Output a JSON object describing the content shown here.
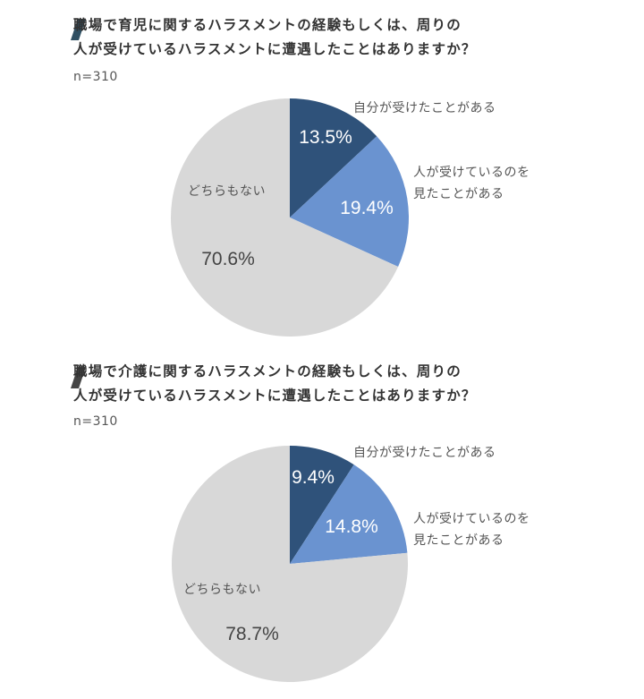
{
  "charts_meta": {
    "colors": {
      "self": "#2f527a",
      "seen": "#6a93d0",
      "none": "#d8d8d8",
      "slash": "#2f4f62",
      "slash2": "#444444"
    }
  },
  "chart_data": [
    {
      "type": "pie",
      "title_lines": [
        "職場で育児に関するハラスメントの経験もしくは、周りの",
        "人が受けているハラスメントに遭遇したことはありますか？"
      ],
      "sample": "n=310",
      "slices": [
        {
          "label": "自分が受けたことがある",
          "value": 13.5,
          "display": "13.5%"
        },
        {
          "label_lines": [
            "人が受けているのを",
            "見たことがある"
          ],
          "value": 19.4,
          "display": "19.4%"
        },
        {
          "label": "どちらもない",
          "value": 70.6,
          "display": "70.6%"
        }
      ]
    },
    {
      "type": "pie",
      "title_lines": [
        "職場で介護に関するハラスメントの経験もしくは、周りの",
        "人が受けているハラスメントに遭遇したことはありますか？"
      ],
      "sample": "n=310",
      "slices": [
        {
          "label": "自分が受けたことがある",
          "value": 9.4,
          "display": "9.4%"
        },
        {
          "label_lines": [
            "人が受けているのを",
            "見たことがある"
          ],
          "value": 14.8,
          "display": "14.8%"
        },
        {
          "label": "どちらもない",
          "value": 78.7,
          "display": "78.7%"
        }
      ]
    }
  ]
}
